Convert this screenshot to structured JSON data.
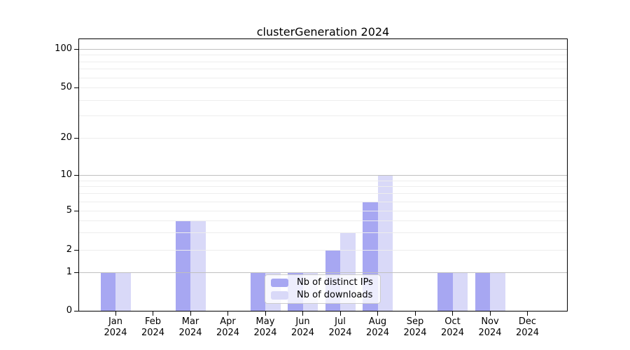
{
  "chart_data": {
    "type": "bar",
    "title": "clusterGeneration 2024",
    "categories": [
      "Jan",
      "Feb",
      "Mar",
      "Apr",
      "May",
      "Jun",
      "Jul",
      "Aug",
      "Sep",
      "Oct",
      "Nov",
      "Dec"
    ],
    "year_label": "2024",
    "series": [
      {
        "name": "Nb of distinct IPs",
        "color": "#a7a7f2",
        "values": [
          1,
          0,
          4,
          0,
          1,
          1,
          2,
          6,
          0,
          1,
          1,
          0
        ]
      },
      {
        "name": "Nb of downloads",
        "color": "#d9d9f8",
        "values": [
          1,
          0,
          4,
          0,
          1,
          1,
          3,
          10,
          0,
          1,
          1,
          0
        ]
      }
    ],
    "yaxis": {
      "scale": "log-like",
      "range": [
        0,
        119
      ],
      "tick_values": [
        0,
        1,
        2,
        5,
        10,
        20,
        50,
        100
      ],
      "tick_labels": [
        "0",
        "1",
        "2",
        "5",
        "10",
        "20",
        "50",
        "100"
      ],
      "major_gridlines": [
        1,
        10,
        100
      ],
      "minor_gridlines": [
        2,
        3,
        4,
        5,
        6,
        7,
        8,
        9,
        20,
        30,
        40,
        50,
        60,
        70,
        80,
        90
      ]
    },
    "xaxis": {
      "tick_count": 12
    },
    "legend": {
      "position": "lower-center",
      "entries_bound_from": "series names"
    },
    "grid": true
  },
  "colors": {
    "background": "#ffffff",
    "axis": "#000000",
    "grid_major": "#bfbfbf",
    "grid_minor": "#ededed",
    "legend_border": "#cccccc"
  }
}
